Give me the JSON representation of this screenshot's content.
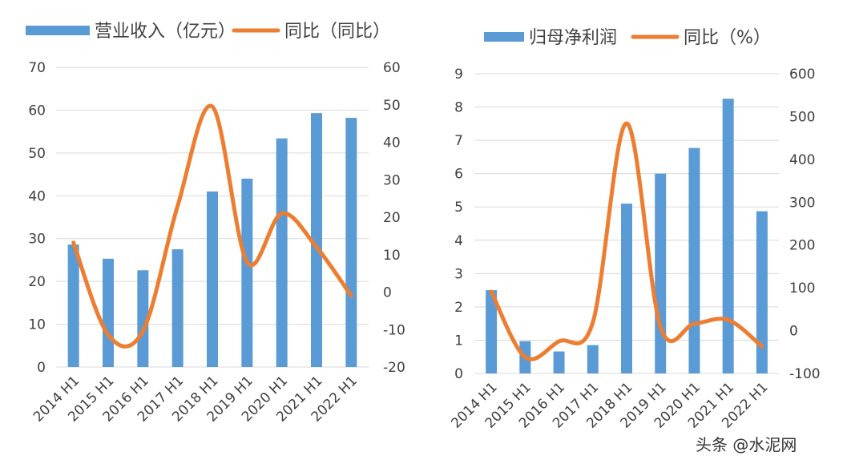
{
  "colors": {
    "bar": "#5b9bd5",
    "line": "#ed7d31",
    "grid": "#d9d9d9"
  },
  "watermark": "头条 @水泥网",
  "chart_data": [
    {
      "type": "bar+line",
      "categories": [
        "2014 H1",
        "2015 H1",
        "2016 H1",
        "2017 H1",
        "2018 H1",
        "2019 H1",
        "2020 H1",
        "2021 H1",
        "2022 H1"
      ],
      "series": [
        {
          "name": "营业收入（亿元）",
          "type": "bar",
          "axis": "left",
          "values": [
            28.6,
            25.3,
            22.6,
            27.5,
            41.0,
            44.0,
            53.4,
            59.3,
            58.2
          ]
        },
        {
          "name": "同比（同比）",
          "type": "line",
          "smooth": true,
          "axis": "right",
          "values": [
            13.2,
            -11.4,
            -10.4,
            23.0,
            49.5,
            8.0,
            21.0,
            12.0,
            -1.0
          ]
        }
      ],
      "y_left": {
        "range": [
          0,
          70
        ],
        "ticks": [
          "0",
          "10",
          "20",
          "30",
          "40",
          "50",
          "60",
          "70"
        ]
      },
      "y_right": {
        "range": [
          -20,
          60
        ],
        "ticks": [
          "-20",
          "-10",
          "0",
          "10",
          "20",
          "30",
          "40",
          "50",
          "60"
        ]
      },
      "grid": true,
      "legend": "top"
    },
    {
      "type": "bar+line",
      "categories": [
        "2014 H1",
        "2015 H1",
        "2016 H1",
        "2017 H1",
        "2018 H1",
        "2019 H1",
        "2020 H1",
        "2021 H1",
        "2022 H1"
      ],
      "series": [
        {
          "name": "归母净利润",
          "type": "bar",
          "axis": "left",
          "values": [
            2.5,
            0.97,
            0.66,
            0.85,
            5.1,
            6.0,
            6.77,
            8.25,
            4.87
          ]
        },
        {
          "name": "同比（%）",
          "type": "line",
          "smooth": true,
          "axis": "right",
          "values": [
            91,
            -62,
            -25,
            19,
            484,
            9,
            16,
            25,
            -37
          ]
        }
      ],
      "y_left": {
        "range": [
          0,
          9
        ],
        "ticks": [
          "0",
          "1",
          "2",
          "3",
          "4",
          "5",
          "6",
          "7",
          "8",
          "9"
        ]
      },
      "y_right": {
        "range": [
          -100,
          600
        ],
        "ticks": [
          "-100",
          "0",
          "100",
          "200",
          "300",
          "400",
          "500",
          "600"
        ]
      },
      "grid": true,
      "legend": "top"
    }
  ]
}
